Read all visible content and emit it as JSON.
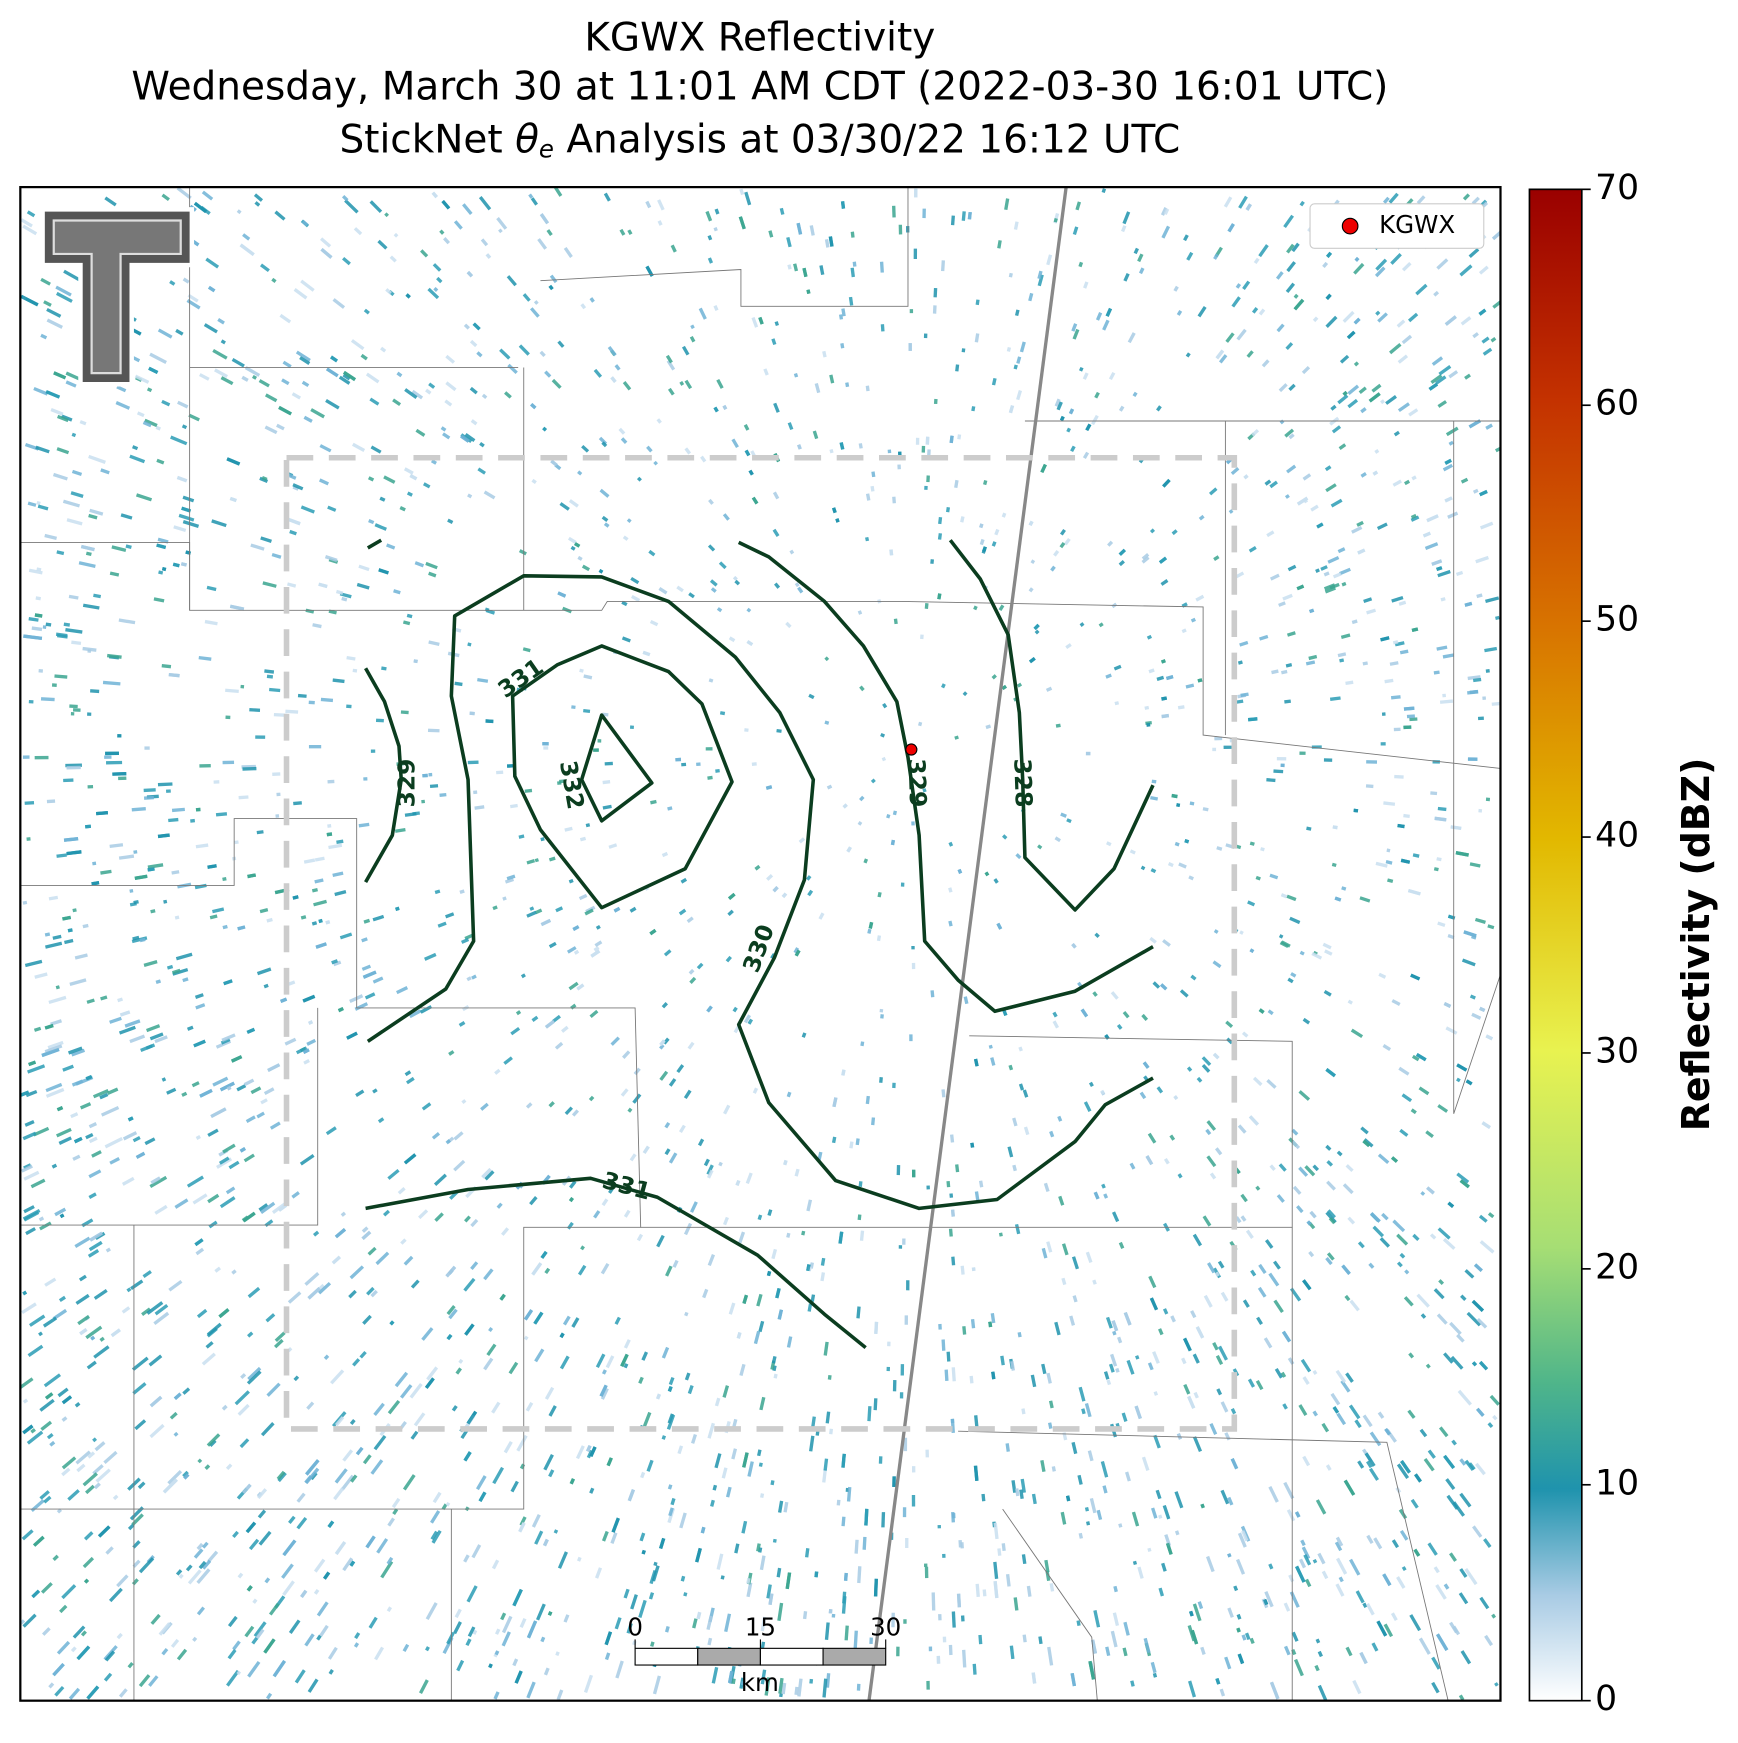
{
  "title": {
    "line1": "KGWX Reflectivity",
    "line2": "Wednesday, March 30 at 11:01 AM CDT (2022-03-30 16:01 UTC)",
    "line3_prefix": "StickNet",
    "line3_symbol": "θ",
    "line3_subscript": "e",
    "line3_suffix": "Analysis at 03/30/22 16:12 UTC"
  },
  "legend": {
    "label": "KGWX"
  },
  "contour_labels": [
    329,
    332,
    331,
    330,
    331,
    329,
    328
  ],
  "scale_bar": {
    "ticks": [
      0,
      15,
      30
    ],
    "unit": "km"
  },
  "colorbar": {
    "label": "Reflectivity (dBZ)",
    "lim": [
      0,
      70
    ],
    "ticks": [
      0,
      10,
      20,
      30,
      40,
      50,
      60,
      70
    ]
  }
}
